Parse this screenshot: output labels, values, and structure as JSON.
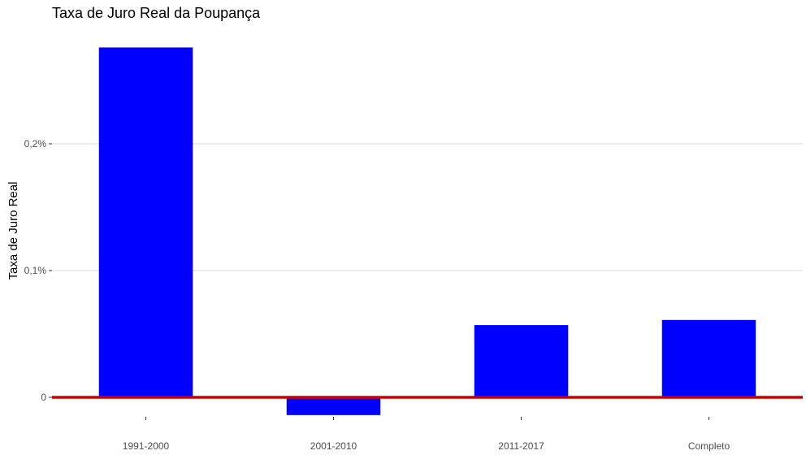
{
  "chart_data": {
    "type": "bar",
    "title": "Taxa de Juro Real da Poupança",
    "ylabel": "Taxa de Juro Real",
    "xlabel": "",
    "categories": [
      "1991-2000",
      "2001-2010",
      "2011-2017",
      "Completo"
    ],
    "values": [
      0.276,
      -0.014,
      0.057,
      0.061
    ],
    "y_ticks": [
      {
        "value": 0,
        "label": "0"
      },
      {
        "value": 0.1,
        "label": "0,1%"
      },
      {
        "value": 0.2,
        "label": "0,2%"
      }
    ],
    "ylim": [
      -0.015,
      0.276
    ],
    "bar_color": "#0000ff",
    "zero_line_color": "#cc0000",
    "grid": true,
    "legend": "none"
  }
}
